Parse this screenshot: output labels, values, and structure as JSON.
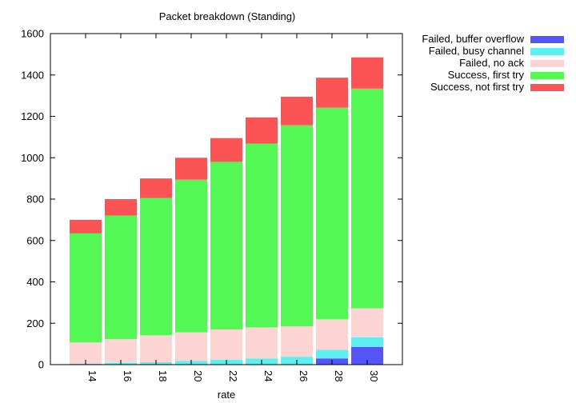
{
  "chart_data": {
    "type": "bar",
    "stacked": true,
    "title": "Packet breakdown (Standing)",
    "xlabel": "rate",
    "ylabel": "",
    "ylim": [
      0,
      1600
    ],
    "yticks": [
      "0",
      "200",
      "400",
      "600",
      "800",
      "1000",
      "1200",
      "1400",
      "1600"
    ],
    "grid": false,
    "legend_position": "right-top",
    "categories": [
      "14",
      "16",
      "18",
      "20",
      "22",
      "24",
      "26",
      "28",
      "30"
    ],
    "series": [
      {
        "name": "Failed, buffer overflow",
        "color": "#5454f8",
        "values": [
          0,
          0,
          0,
          0,
          0,
          0,
          0,
          30,
          85
        ]
      },
      {
        "name": "Failed, busy channel",
        "color": "#5ef0f0",
        "values": [
          5,
          8,
          12,
          18,
          23,
          30,
          38,
          42,
          47
        ]
      },
      {
        "name": "Failed, no ack",
        "color": "#fcd4d4",
        "values": [
          102,
          115,
          130,
          138,
          147,
          150,
          147,
          148,
          140
        ]
      },
      {
        "name": "Success, first try",
        "color": "#54f854",
        "values": [
          527,
          597,
          663,
          738,
          810,
          888,
          972,
          1022,
          1062
        ]
      },
      {
        "name": "Success, not first try",
        "color": "#fc5454",
        "values": [
          66,
          80,
          95,
          106,
          115,
          127,
          138,
          145,
          151
        ]
      }
    ]
  }
}
